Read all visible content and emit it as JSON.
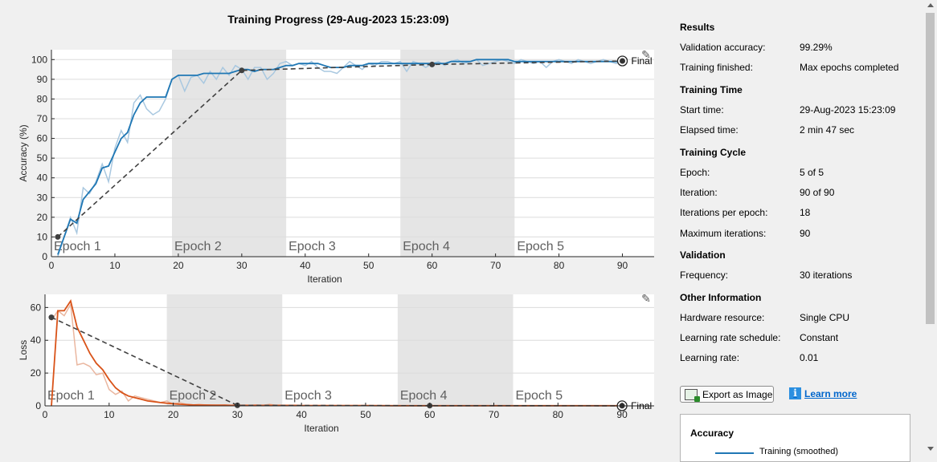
{
  "title": "Training Progress (29-Aug-2023 15:23:09)",
  "panel": {
    "results": {
      "heading": "Results",
      "val_acc_label": "Validation accuracy:",
      "val_acc_value": "99.29%",
      "finished_label": "Training finished:",
      "finished_value": "Max epochs completed"
    },
    "time": {
      "heading": "Training Time",
      "start_label": "Start time:",
      "start_value": "29-Aug-2023 15:23:09",
      "elapsed_label": "Elapsed time:",
      "elapsed_value": "2 min 47 sec"
    },
    "cycle": {
      "heading": "Training Cycle",
      "epoch_label": "Epoch:",
      "epoch_value": "5 of 5",
      "iter_label": "Iteration:",
      "iter_value": "90 of 90",
      "ipe_label": "Iterations per epoch:",
      "ipe_value": "18",
      "maxit_label": "Maximum iterations:",
      "maxit_value": "90"
    },
    "validation": {
      "heading": "Validation",
      "freq_label": "Frequency:",
      "freq_value": "30 iterations"
    },
    "other": {
      "heading": "Other Information",
      "hw_label": "Hardware resource:",
      "hw_value": "Single CPU",
      "lr_sched_label": "Learning rate schedule:",
      "lr_sched_value": "Constant",
      "lr_label": "Learning rate:",
      "lr_value": "0.01"
    },
    "export_label": "Export as Image",
    "learn_more_label": "Learn more",
    "legend": {
      "title": "Accuracy",
      "entry": "Training (smoothed)"
    }
  },
  "colors": {
    "acc_smooth": "#1f77b4",
    "acc_raw": "#a9c8e0",
    "loss_smooth": "#d95319",
    "loss_raw": "#eab7a0",
    "validation": "#404040",
    "epoch_shade": "#e5e5e5"
  },
  "icons": {
    "plot_tool": "brush-icon",
    "export": "image-export-icon",
    "info": "info-icon"
  },
  "chart_data": [
    {
      "type": "line",
      "xlabel": "Iteration",
      "ylabel": "Accuracy (%)",
      "xlim": [
        0,
        95
      ],
      "ylim": [
        0,
        105
      ],
      "xticks": [
        0,
        10,
        20,
        30,
        40,
        50,
        60,
        70,
        80,
        90
      ],
      "yticks": [
        0,
        10,
        20,
        30,
        40,
        50,
        60,
        70,
        80,
        90,
        100
      ],
      "epochs": [
        {
          "label": "Epoch 1",
          "start": 0,
          "end": 19,
          "shaded": false
        },
        {
          "label": "Epoch 2",
          "start": 19,
          "end": 37,
          "shaded": true
        },
        {
          "label": "Epoch 3",
          "start": 37,
          "end": 55,
          "shaded": false
        },
        {
          "label": "Epoch 4",
          "start": 55,
          "end": 73,
          "shaded": true
        },
        {
          "label": "Epoch 5",
          "start": 73,
          "end": 95,
          "shaded": false
        }
      ],
      "final_label": "Final",
      "series": [
        {
          "style": "raw",
          "x": [
            1,
            2,
            3,
            4,
            5,
            6,
            7,
            8,
            9,
            10,
            11,
            12,
            13,
            14,
            15,
            16,
            17,
            18,
            19,
            20,
            21,
            22,
            23,
            24,
            25,
            26,
            27,
            28,
            29,
            30,
            31,
            32,
            33,
            34,
            35,
            36,
            37,
            38,
            39,
            40,
            41,
            42,
            43,
            44,
            45,
            46,
            47,
            48,
            49,
            50,
            51,
            52,
            53,
            54,
            55,
            56,
            57,
            58,
            59,
            60,
            61,
            62,
            63,
            64,
            65,
            66,
            67,
            68,
            69,
            70,
            71,
            72,
            73,
            74,
            75,
            76,
            77,
            78,
            79,
            80,
            81,
            82,
            83,
            84,
            85,
            86,
            87,
            88,
            89,
            90
          ],
          "y": [
            0,
            10,
            20,
            12,
            35,
            32,
            38,
            47,
            38,
            55,
            64,
            58,
            78,
            82,
            75,
            72,
            74,
            80,
            90,
            92,
            84,
            91,
            92,
            88,
            94,
            90,
            96,
            92,
            97,
            95,
            90,
            96,
            96,
            90,
            93,
            98,
            99,
            97,
            98,
            97,
            99,
            96,
            94,
            94,
            93,
            96,
            99,
            97,
            95,
            98,
            97,
            99,
            99,
            98,
            99,
            94,
            99,
            98,
            96,
            98,
            99,
            97,
            99,
            100,
            98,
            99,
            100,
            97,
            98,
            99,
            100,
            99,
            98,
            100,
            99,
            98,
            99,
            96,
            99,
            100,
            99,
            98,
            100,
            99,
            98,
            99,
            100,
            99,
            98,
            99
          ]
        },
        {
          "style": "smoothed",
          "x": [
            1,
            2,
            3,
            4,
            5,
            6,
            7,
            8,
            9,
            10,
            11,
            12,
            13,
            14,
            15,
            16,
            17,
            18,
            19,
            20,
            21,
            22,
            23,
            24,
            25,
            26,
            27,
            28,
            29,
            30,
            31,
            32,
            33,
            34,
            35,
            36,
            37,
            38,
            39,
            40,
            41,
            42,
            43,
            44,
            45,
            46,
            47,
            48,
            49,
            50,
            51,
            52,
            53,
            54,
            55,
            56,
            57,
            58,
            59,
            60,
            61,
            62,
            63,
            64,
            65,
            66,
            67,
            68,
            69,
            70,
            71,
            72,
            73,
            74,
            75,
            76,
            77,
            78,
            79,
            80,
            81,
            82,
            83,
            84,
            85,
            86,
            87,
            88,
            89,
            90
          ],
          "y": [
            1,
            10,
            19,
            17,
            29,
            33,
            37,
            45,
            46,
            53,
            60,
            63,
            72,
            78,
            81,
            81,
            81,
            81,
            90,
            92,
            92,
            92,
            92,
            93,
            93,
            93,
            93,
            93,
            94,
            95,
            95,
            94,
            95,
            95,
            95,
            96,
            97,
            97,
            98,
            98,
            98,
            98,
            97,
            96,
            96,
            96,
            97,
            97,
            97,
            98,
            98,
            98,
            98,
            98,
            98,
            98,
            98,
            98,
            98,
            98,
            98,
            98,
            99,
            99,
            99,
            99,
            100,
            100,
            100,
            100,
            100,
            100,
            99,
            99,
            99,
            99,
            99,
            99,
            99,
            99,
            99,
            99,
            99,
            99,
            99,
            99,
            99,
            99,
            99,
            99
          ]
        },
        {
          "style": "validation",
          "x": [
            1,
            30,
            60,
            90
          ],
          "y": [
            10,
            94.5,
            97.5,
            99.3
          ]
        }
      ]
    },
    {
      "type": "line",
      "xlabel": "Iteration",
      "ylabel": "Loss",
      "xlim": [
        0,
        95
      ],
      "ylim": [
        0,
        68
      ],
      "xticks": [
        0,
        10,
        20,
        30,
        40,
        50,
        60,
        70,
        80,
        90
      ],
      "yticks": [
        0,
        20,
        40,
        60
      ],
      "epochs": [
        {
          "label": "Epoch 1",
          "start": 0,
          "end": 19,
          "shaded": false
        },
        {
          "label": "Epoch 2",
          "start": 19,
          "end": 37,
          "shaded": true
        },
        {
          "label": "Epoch 3",
          "start": 37,
          "end": 55,
          "shaded": false
        },
        {
          "label": "Epoch 4",
          "start": 55,
          "end": 73,
          "shaded": true
        },
        {
          "label": "Epoch 5",
          "start": 73,
          "end": 95,
          "shaded": false
        }
      ],
      "final_label": "Final",
      "series": [
        {
          "style": "raw",
          "x": [
            1,
            2,
            3,
            4,
            5,
            6,
            7,
            8,
            9,
            10,
            11,
            12,
            13,
            14,
            15,
            16,
            17,
            18,
            19,
            20,
            21,
            22,
            23,
            24,
            25,
            26,
            27,
            28,
            29,
            30,
            31,
            32,
            33,
            34,
            35,
            36,
            37,
            38,
            39,
            40,
            45,
            50,
            55,
            60,
            65,
            70,
            75,
            80,
            85,
            90
          ],
          "y": [
            52,
            58,
            55,
            62,
            25,
            26,
            24,
            19,
            20,
            10,
            7,
            9,
            3,
            6,
            5,
            4,
            3,
            2,
            3,
            1,
            2,
            1,
            0.5,
            1,
            0.5,
            0.5,
            0.3,
            0.5,
            0.4,
            0.3,
            0.5,
            0.4,
            0.6,
            0.3,
            1,
            0.4,
            0.3,
            0.2,
            0.3,
            0.2,
            0.2,
            0.2,
            0.1,
            0.1,
            0.1,
            0.1,
            0.1,
            0.1,
            0.1,
            0.1
          ]
        },
        {
          "style": "smoothed",
          "x": [
            1,
            2,
            3,
            4,
            5,
            6,
            7,
            8,
            9,
            10,
            11,
            12,
            13,
            14,
            15,
            16,
            17,
            18,
            19,
            20,
            21,
            22,
            23,
            24,
            25,
            26,
            27,
            28,
            29,
            30,
            31,
            32,
            33,
            34,
            35,
            36,
            37,
            38,
            39,
            40,
            45,
            50,
            55,
            60,
            65,
            70,
            75,
            80,
            85,
            90
          ],
          "y": [
            0,
            58,
            58,
            64,
            48,
            40,
            32,
            26,
            22,
            16,
            11,
            8,
            6,
            5,
            4,
            3,
            2.5,
            2,
            1.6,
            1.3,
            1,
            0.8,
            0.6,
            0.5,
            0.5,
            0.4,
            0.4,
            0.4,
            0.3,
            0.3,
            0.3,
            0.3,
            0.3,
            0.3,
            0.3,
            0.3,
            0.3,
            0.3,
            0.3,
            0.2,
            0.2,
            0.2,
            0.1,
            0.1,
            0.1,
            0.1,
            0.1,
            0.1,
            0.1,
            0.1
          ]
        },
        {
          "style": "validation",
          "x": [
            1,
            30,
            60,
            90
          ],
          "y": [
            54,
            0.3,
            0.1,
            0.05
          ]
        }
      ]
    }
  ]
}
